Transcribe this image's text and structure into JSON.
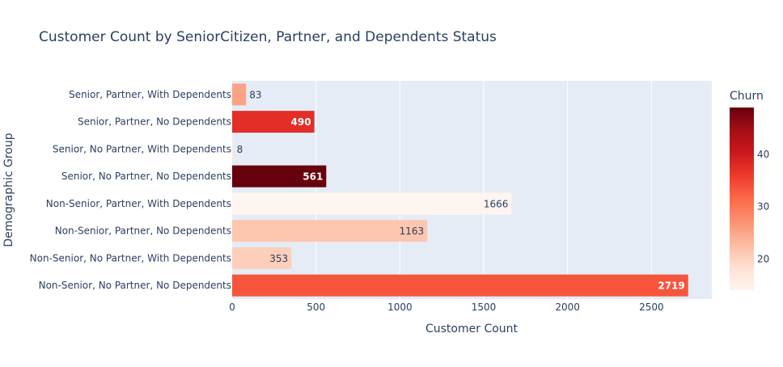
{
  "chart_data": {
    "type": "bar",
    "orientation": "horizontal",
    "title": "Customer Count by SeniorCitizen, Partner, and Dependents Status",
    "xlabel": "Customer Count",
    "ylabel": "Demographic Group",
    "xlim": [
      0,
      2860
    ],
    "x_ticks": [
      0,
      500,
      1000,
      1500,
      2000,
      2500
    ],
    "grid": true,
    "categories": [
      "Senior, Partner, With Dependents",
      "Senior, Partner, No Dependents",
      "Senior, No Partner, With Dependents",
      "Senior, No Partner, No Dependents",
      "Non-Senior, Partner, With Dependents",
      "Non-Senior, Partner, No Dependents",
      "Non-Senior, No Partner, With Dependents",
      "Non-Senior, No Partner, No Dependents"
    ],
    "values": [
      83,
      490,
      8,
      561,
      1666,
      1163,
      353,
      2719
    ],
    "color_values": [
      25.3,
      37.5,
      17.0,
      49.0,
      14.0,
      21.5,
      20.5,
      33.5
    ],
    "colorbar": {
      "title": "Churn",
      "range": [
        14,
        49
      ],
      "ticks": [
        20,
        30,
        40
      ],
      "colorscale": "Reds"
    }
  }
}
